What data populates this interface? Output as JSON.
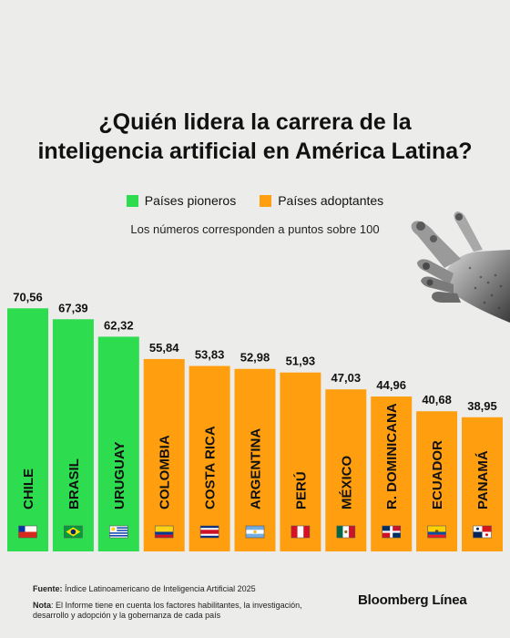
{
  "title_lines": [
    "¿Quién lidera la carrera de la",
    "inteligencia artificial en América Latina?"
  ],
  "legend": [
    {
      "label": "Países pioneros",
      "color": "#2edc4f"
    },
    {
      "label": "Países adoptantes",
      "color": "#ff9f0f"
    }
  ],
  "subtitle": "Los números corresponden a puntos sobre 100",
  "footer": {
    "source_label": "Fuente:",
    "source_text": " Índice Latinoamericano de Inteligencia Artificial 2025",
    "note_label": "Nota",
    "note_text": ": El Informe tiene en cuenta los factores habilitantes, la investigación, desarrollo y adopción y la gobernanza de cada país"
  },
  "brand": "Bloomberg Línea",
  "chart_data": {
    "type": "bar",
    "categories": [
      "CHILE",
      "BRASIL",
      "URUGUAY",
      "COLOMBIA",
      "COSTA RICA",
      "ARGENTINA",
      "PERÚ",
      "MÉXICO",
      "R. DOMINICANA",
      "ECUADOR",
      "PANAMÁ"
    ],
    "value_labels": [
      "70,56",
      "67,39",
      "62,32",
      "55,84",
      "53,83",
      "52,98",
      "51,93",
      "47,03",
      "44,96",
      "40,68",
      "38,95"
    ],
    "series": [
      {
        "name": "Países pioneros",
        "values": [
          70.56,
          67.39,
          62.32,
          null,
          null,
          null,
          null,
          null,
          null,
          null,
          null
        ],
        "color": "#2edc4f"
      },
      {
        "name": "Países adoptantes",
        "values": [
          null,
          null,
          null,
          55.84,
          53.83,
          52.98,
          51.93,
          47.03,
          44.96,
          40.68,
          38.95
        ],
        "color": "#ff9f0f"
      }
    ],
    "flag_icons": [
      "chile-flag-icon",
      "brazil-flag-icon",
      "uruguay-flag-icon",
      "colombia-flag-icon",
      "costa-rica-flag-icon",
      "argentina-flag-icon",
      "peru-flag-icon",
      "mexico-flag-icon",
      "dominican-republic-flag-icon",
      "ecuador-flag-icon",
      "panama-flag-icon"
    ],
    "ylim": [
      0,
      100
    ],
    "grid": false,
    "legend_position": "top-center"
  }
}
